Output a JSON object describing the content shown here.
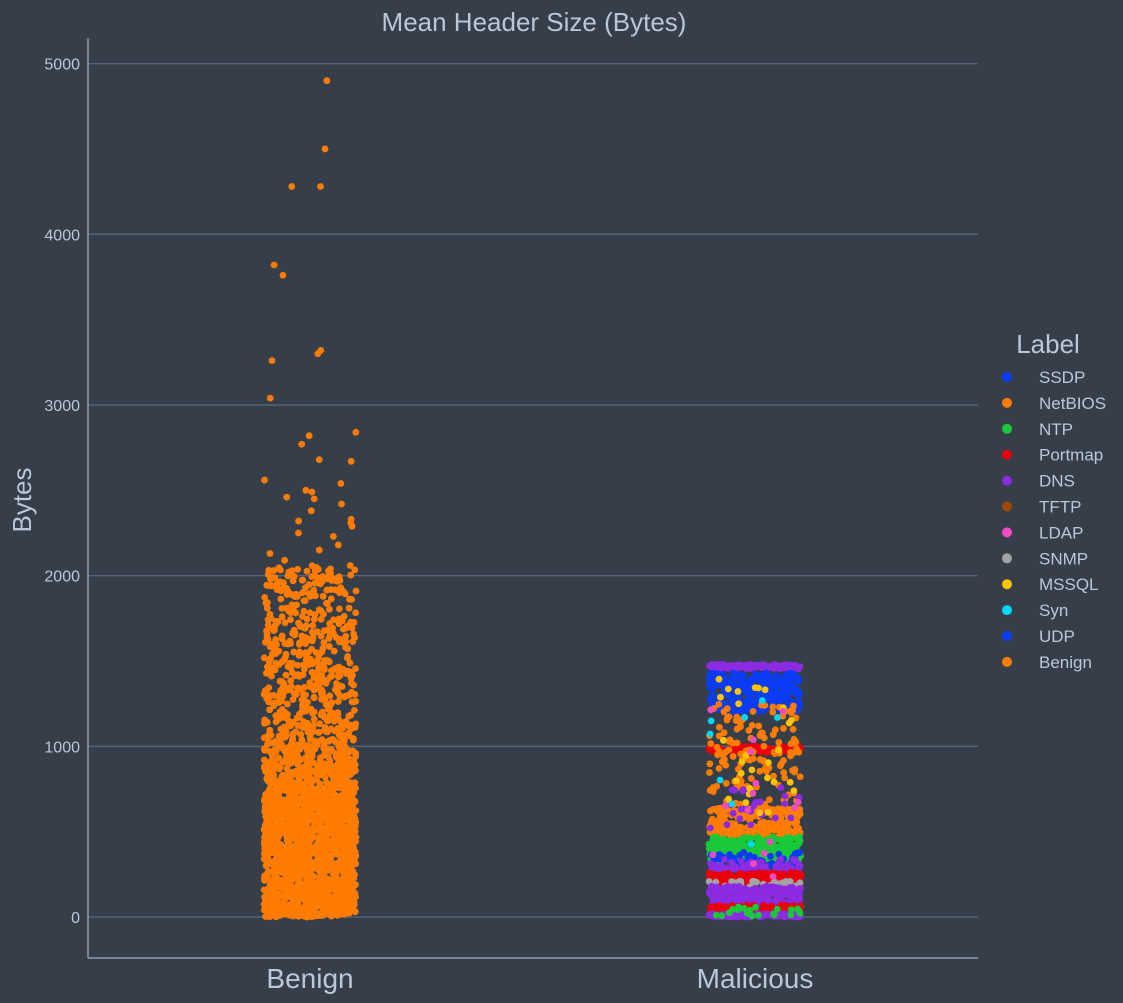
{
  "chart_data": {
    "type": "scatter",
    "subtype": "strip",
    "title": "Mean Header Size (Bytes)",
    "xlabel": "",
    "ylabel": "Bytes",
    "categories": [
      "Benign",
      "Malicious"
    ],
    "yticks": [
      0,
      1000,
      2000,
      3000,
      4000,
      5000
    ],
    "ylim": [
      -240,
      5150
    ],
    "grid": "horizontal",
    "legend": {
      "title": "Label",
      "placement": "right",
      "entries": [
        {
          "name": "SSDP",
          "color": "#0b3cf5"
        },
        {
          "name": "NetBIOS",
          "color": "#ff7c00"
        },
        {
          "name": "NTP",
          "color": "#1ac938"
        },
        {
          "name": "Portmap",
          "color": "#e8000b"
        },
        {
          "name": "DNS",
          "color": "#8b2be2"
        },
        {
          "name": "TFTP",
          "color": "#9f4800"
        },
        {
          "name": "LDAP",
          "color": "#f14cc1"
        },
        {
          "name": "SNMP",
          "color": "#a3a3a3"
        },
        {
          "name": "MSSQL",
          "color": "#ffc400"
        },
        {
          "name": "Syn",
          "color": "#00d7ff"
        },
        {
          "name": "UDP",
          "color": "#0b3cf5"
        },
        {
          "name": "Benign",
          "color": "#ff7c00"
        }
      ]
    },
    "series": [
      {
        "name": "Benign",
        "category": "Benign",
        "color": "#ff7c00",
        "outliers": [
          4900,
          4500,
          4280,
          4280,
          3820,
          3760,
          3320,
          3300,
          3260,
          3040,
          2840,
          2820,
          2770,
          2680,
          2670,
          2560,
          2540,
          2500,
          2490,
          2460,
          2450,
          2420,
          2380,
          2330,
          2320,
          2310,
          2290,
          2250,
          2230,
          2180,
          2150,
          2130,
          2090
        ],
        "bands": [
          {
            "min": 0,
            "max": 700,
            "count": 1400
          },
          {
            "min": 700,
            "max": 1000,
            "count": 320
          },
          {
            "min": 1000,
            "max": 1500,
            "count": 320
          },
          {
            "min": 1500,
            "max": 2060,
            "count": 230
          }
        ]
      },
      {
        "name": "Malicious",
        "category": "Malicious",
        "bands": [
          {
            "label": "DNS",
            "color": "#8b2be2",
            "min": 1455,
            "max": 1480,
            "count": 120
          },
          {
            "label": "SSDP",
            "color": "#0b3cf5",
            "min": 1200,
            "max": 1430,
            "count": 260
          },
          {
            "label": "Portmap",
            "color": "#e8000b",
            "min": 965,
            "max": 1000,
            "count": 110
          },
          {
            "label": "NetBIOS",
            "color": "#ff7c00",
            "min": 620,
            "max": 1250,
            "count": 140
          },
          {
            "label": "NetBIOS",
            "color": "#ff7c00",
            "min": 470,
            "max": 640,
            "count": 230
          },
          {
            "label": "DNS",
            "color": "#8b2be2",
            "min": 520,
            "max": 760,
            "count": 25
          },
          {
            "label": "NTP",
            "color": "#1ac938",
            "min": 330,
            "max": 470,
            "count": 300
          },
          {
            "label": "UDP",
            "color": "#0b3cf5",
            "min": 290,
            "max": 380,
            "count": 60
          },
          {
            "label": "DNS",
            "color": "#8b2be2",
            "min": 260,
            "max": 340,
            "count": 60
          },
          {
            "label": "Portmap",
            "color": "#e8000b",
            "min": 200,
            "max": 260,
            "count": 200
          },
          {
            "label": "SNMP",
            "color": "#a3a3a3",
            "min": 160,
            "max": 210,
            "count": 40
          },
          {
            "label": "DNS",
            "color": "#8b2be2",
            "min": 60,
            "max": 180,
            "count": 240
          },
          {
            "label": "Portmap",
            "color": "#e8000b",
            "min": 20,
            "max": 70,
            "count": 110
          },
          {
            "label": "DNS",
            "color": "#8b2be2",
            "min": 0,
            "max": 20,
            "count": 120
          },
          {
            "label": "NTP",
            "color": "#1ac938",
            "min": 0,
            "max": 60,
            "count": 20
          },
          {
            "label": "MSSQL",
            "color": "#ffc400",
            "min": 600,
            "max": 1440,
            "count": 30
          },
          {
            "label": "LDAP",
            "color": "#f14cc1",
            "min": 100,
            "max": 1300,
            "count": 15
          },
          {
            "label": "Syn",
            "color": "#00d7ff",
            "min": 200,
            "max": 1400,
            "count": 8
          }
        ]
      }
    ]
  }
}
